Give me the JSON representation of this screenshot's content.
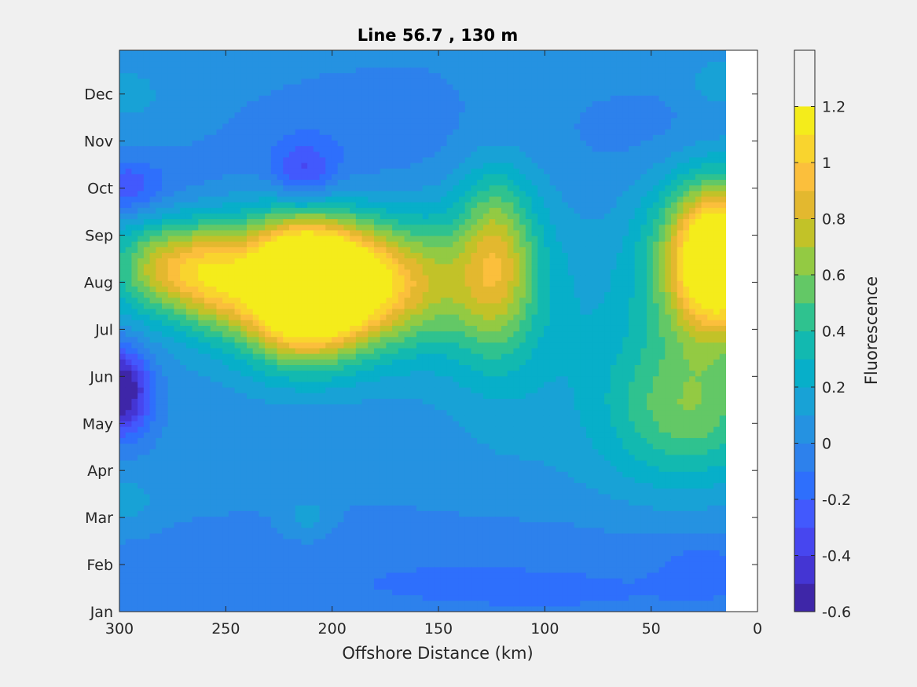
{
  "chart_data": {
    "type": "heatmap",
    "subtype": "filled-contour",
    "title": "Line 56.7 , 130 m",
    "xlabel": "Offshore Distance (km)",
    "ylabel": "",
    "xlim": [
      300,
      0
    ],
    "x_direction": "reversed",
    "x_ticks": [
      "300",
      "250",
      "200",
      "150",
      "100",
      "50",
      "0"
    ],
    "x_tick_values": [
      300,
      250,
      200,
      150,
      100,
      50,
      0
    ],
    "y_ticks": [
      "Jan",
      "Feb",
      "Mar",
      "Apr",
      "May",
      "Jun",
      "Jul",
      "Aug",
      "Sep",
      "Oct",
      "Nov",
      "Dec"
    ],
    "data_x_extent_km": [
      300,
      15
    ],
    "colorbar": {
      "label": "Fluorescence",
      "range": [
        -0.6,
        1.4
      ],
      "step": 0.1,
      "tick_labels": [
        "1.2",
        "1",
        "0.8",
        "0.6",
        "0.4",
        "0.2",
        "0",
        "-0.2",
        "-0.4",
        "-0.6"
      ],
      "tick_values": [
        1.2,
        1.0,
        0.8,
        0.6,
        0.4,
        0.2,
        0,
        -0.2,
        -0.4,
        -0.6
      ],
      "colormap": "parula",
      "level_colors": [
        "#3e26a8",
        "#4435d3",
        "#4746ef",
        "#4259fd",
        "#2e6ffc",
        "#2d81ec",
        "#2592e1",
        "#18a2d6",
        "#07afc9",
        "#12b9b0",
        "#2fc28f",
        "#63c866",
        "#93ca43",
        "#c2c228",
        "#e3b82f",
        "#fbbf3c",
        "#f9d42e",
        "#f4ec1b"
      ]
    },
    "background_value": 0.05,
    "features": [
      {
        "x_km": 215,
        "month": 6.9,
        "value": 1.3,
        "sx": 20,
        "sy": 1.0
      },
      {
        "x_km": 190,
        "month": 7.0,
        "value": 0.7,
        "sx": 30,
        "sy": 0.85
      },
      {
        "x_km": 170,
        "month": 7.0,
        "value": 0.35,
        "sx": 45,
        "sy": 1.2
      },
      {
        "x_km": 278,
        "month": 7.3,
        "value": 0.5,
        "sx": 15,
        "sy": 0.65
      },
      {
        "x_km": 256,
        "month": 7.1,
        "value": 0.45,
        "sx": 12,
        "sy": 0.75
      },
      {
        "x_km": 265,
        "month": 7.4,
        "value": 0.25,
        "sx": 40,
        "sy": 1.0
      },
      {
        "x_km": 123,
        "month": 7.6,
        "value": 0.45,
        "sx": 12,
        "sy": 1.3
      },
      {
        "x_km": 120,
        "month": 7.2,
        "value": 0.2,
        "sx": 20,
        "sy": 2.2
      },
      {
        "x_km": 17,
        "month": 7.5,
        "value": 1.1,
        "sx": 15,
        "sy": 1.0
      },
      {
        "x_km": 25,
        "month": 7.5,
        "value": 0.55,
        "sx": 22,
        "sy": 1.4
      },
      {
        "x_km": 28,
        "month": 4.2,
        "value": 0.35,
        "sx": 25,
        "sy": 1.0
      },
      {
        "x_km": 50,
        "month": 4.6,
        "value": 0.2,
        "sx": 30,
        "sy": 1.5
      },
      {
        "x_km": 300,
        "month": 4.7,
        "value": -0.75,
        "sx": 10,
        "sy": 0.65
      },
      {
        "x_km": 298,
        "month": 9.0,
        "value": -0.35,
        "sx": 13,
        "sy": 0.45
      },
      {
        "x_km": 268,
        "month": 9.0,
        "value": -0.1,
        "sx": 18,
        "sy": 0.6
      },
      {
        "x_km": 213,
        "month": 9.3,
        "value": -0.3,
        "sx": 10,
        "sy": 0.45
      },
      {
        "x_km": 215,
        "month": 9.2,
        "value": -0.12,
        "sx": 28,
        "sy": 1.0
      },
      {
        "x_km": 120,
        "month": 10.1,
        "value": -0.05,
        "sx": 14,
        "sy": 0.6
      },
      {
        "x_km": 150,
        "month": 10.0,
        "value": -0.1,
        "sx": 60,
        "sy": 1.4
      },
      {
        "x_km": 35,
        "month": 10.1,
        "value": -0.1,
        "sx": 25,
        "sy": 0.8
      },
      {
        "x_km": 150,
        "month": 1.0,
        "value": -0.12,
        "sx": 150,
        "sy": 0.9
      },
      {
        "x_km": 25,
        "month": 1.0,
        "value": -0.1,
        "sx": 14,
        "sy": 0.4
      },
      {
        "x_km": 75,
        "month": 0.2,
        "value": -0.08,
        "sx": 120,
        "sy": 0.6
      },
      {
        "x_km": 210,
        "month": 3.6,
        "value": -0.05,
        "sx": 40,
        "sy": 0.7
      },
      {
        "x_km": 212,
        "month": 2.0,
        "value": 0.15,
        "sx": 8,
        "sy": 0.35
      },
      {
        "x_km": 296,
        "month": 2.3,
        "value": 0.12,
        "sx": 10,
        "sy": 0.4
      },
      {
        "x_km": 296,
        "month": 11.0,
        "value": 0.12,
        "sx": 10,
        "sy": 0.35
      },
      {
        "x_km": 20,
        "month": 11.2,
        "value": 0.12,
        "sx": 10,
        "sy": 0.4
      }
    ]
  }
}
